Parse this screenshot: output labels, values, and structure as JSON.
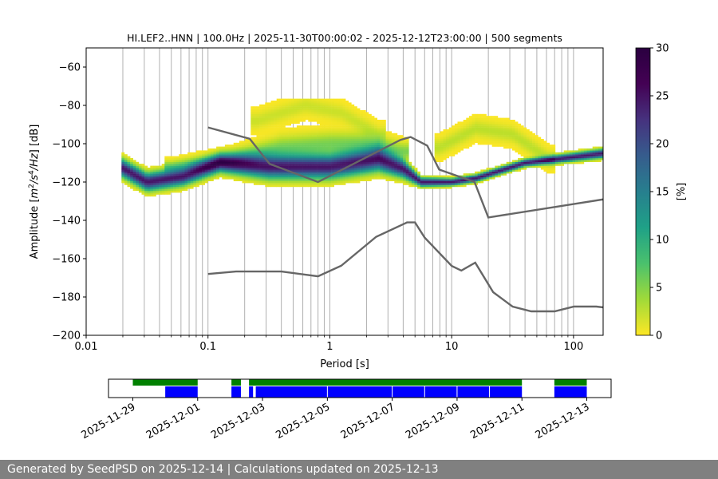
{
  "chart_data": {
    "type": "heatmap",
    "title": "HI.LEF2..HNN | 100.0Hz | 2025-11-30T00:00:02 - 2025-12-12T23:00:00 | 500 segments",
    "xlabel": "Period [s]",
    "ylabel_prefix": "Amplitude [",
    "ylabel_suffix": "] [dB]",
    "xscale": "log",
    "xlim": [
      0.01,
      175
    ],
    "ylim": [
      -200,
      -50
    ],
    "xticks": [
      0.01,
      0.1,
      1,
      10,
      100
    ],
    "xtick_labels": [
      "0.01",
      "0.1",
      "1",
      "10",
      "100"
    ],
    "yticks": [
      -200,
      -180,
      -160,
      -140,
      -120,
      -100,
      -80,
      -60
    ],
    "ytick_labels": [
      "−200",
      "−180",
      "−160",
      "−140",
      "−120",
      "−100",
      "−80",
      "−60"
    ],
    "grid": "vertical",
    "grid_periods": [
      0.02,
      0.03,
      0.04,
      0.05,
      0.06,
      0.07,
      0.08,
      0.09,
      0.1,
      0.2,
      0.3,
      0.4,
      0.5,
      0.6,
      0.7,
      0.8,
      0.9,
      1,
      2,
      3,
      4,
      5,
      6,
      7,
      8,
      9,
      10,
      20,
      30,
      40,
      50,
      60,
      70,
      80,
      90,
      100
    ],
    "colorbar": {
      "label": "[%]",
      "range": [
        0,
        30
      ],
      "ticks": [
        0,
        5,
        10,
        15,
        20,
        25,
        30
      ],
      "colormap": "viridis_r"
    },
    "noise_models": [
      {
        "name": "NHNM",
        "periods": [
          0.1,
          0.22,
          0.32,
          0.8,
          3.8,
          4.6,
          6.3,
          7.9,
          15.4,
          20,
          354.8
        ],
        "db": [
          -91.5,
          -97.4,
          -110.5,
          -120,
          -98,
          -96.5,
          -101,
          -113.5,
          -120,
          -138.5,
          -126
        ]
      },
      {
        "name": "NLNM",
        "periods": [
          0.1,
          0.17,
          0.4,
          0.8,
          1.24,
          2.4,
          4.3,
          5.0,
          6.0,
          10.0,
          12.0,
          15.6,
          21.9,
          31.6,
          45.0,
          70.0,
          101.0,
          154.0,
          328.0
        ],
        "db": [
          -168,
          -166.7,
          -166.7,
          -169.2,
          -163.7,
          -148.6,
          -141.1,
          -141.1,
          -149,
          -163.8,
          -166.2,
          -162.1,
          -177.5,
          -185,
          -187.5,
          -187.5,
          -185,
          -185,
          -187.5
        ]
      }
    ],
    "availability": {
      "xticks": [
        "2025-11-29",
        "2025-12-01",
        "2025-12-03",
        "2025-12-05",
        "2025-12-07",
        "2025-12-09",
        "2025-12-11",
        "2025-12-13"
      ],
      "xlim": [
        "2025-11-28T06:00",
        "2025-12-13T18:00"
      ],
      "data_color": "#008000",
      "segment_color": "#0000ff",
      "data_spans": [
        [
          "2025-11-29T00:00",
          "2025-12-01T00:00"
        ],
        [
          "2025-12-02T01:00",
          "2025-12-02T08:00"
        ],
        [
          "2025-12-02T14:00",
          "2025-12-11T00:00"
        ],
        [
          "2025-12-12T00:00",
          "2025-12-13T00:00"
        ]
      ],
      "segment_spans": [
        [
          "2025-11-30T00:00",
          "2025-12-01T00:00"
        ],
        [
          "2025-12-02T01:00",
          "2025-12-02T08:00"
        ],
        [
          "2025-12-02T14:00",
          "2025-12-02T17:00"
        ],
        [
          "2025-12-02T19:00",
          "2025-12-11T00:00"
        ],
        [
          "2025-12-12T00:00",
          "2025-12-13T00:00"
        ]
      ],
      "segment_breaks": [
        "2025-12-05T00:00",
        "2025-12-07T00:00",
        "2025-12-08T00:00",
        "2025-12-09T00:00",
        "2025-12-10T00:00"
      ]
    }
  },
  "footer": {
    "text": "Generated by SeedPSD on 2025-12-14 | Calculations updated on 2025-12-13"
  }
}
